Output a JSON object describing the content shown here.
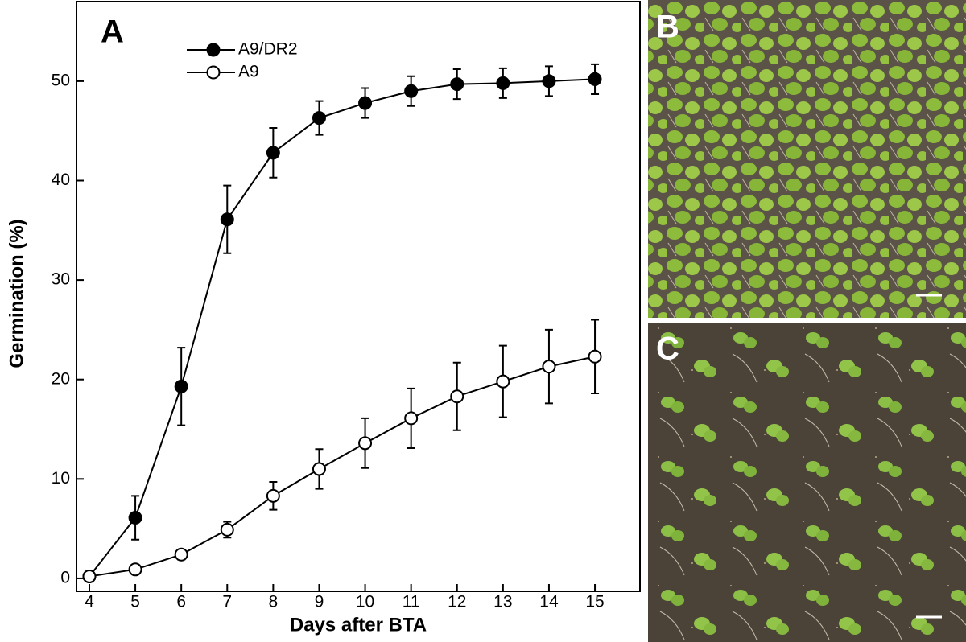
{
  "chart_data": {
    "type": "line",
    "panel_label": "A",
    "xlabel": "Days after BTA",
    "ylabel": "Germination (%)",
    "x": [
      4,
      5,
      6,
      7,
      8,
      9,
      10,
      11,
      12,
      13,
      14,
      15
    ],
    "series": [
      {
        "name": "A9/DR2",
        "color": "#000000",
        "marker": "filled",
        "values": [
          0.2,
          6.1,
          19.3,
          36.1,
          42.8,
          46.3,
          47.8,
          49.0,
          49.7,
          49.8,
          50.0,
          50.2
        ],
        "errors": [
          0,
          2.2,
          3.9,
          3.4,
          2.5,
          1.7,
          1.5,
          1.5,
          1.5,
          1.5,
          1.5,
          1.5
        ]
      },
      {
        "name": "A9",
        "color": "#000000",
        "marker": "open",
        "values": [
          0.2,
          0.9,
          2.4,
          4.9,
          8.3,
          11.0,
          13.6,
          16.1,
          18.3,
          19.8,
          21.3,
          22.3
        ],
        "errors": [
          0,
          0.4,
          0.5,
          0.8,
          1.4,
          2.0,
          2.5,
          3.0,
          3.4,
          3.6,
          3.7,
          3.7
        ]
      }
    ],
    "xlim": [
      3.72,
      15.98
    ],
    "ylim": [
      -1.3,
      58
    ],
    "xticks": [
      4,
      5,
      6,
      7,
      8,
      9,
      10,
      11,
      12,
      13,
      14,
      15
    ],
    "yticks": [
      0,
      10,
      20,
      30,
      40,
      50
    ],
    "legend": "upper left"
  },
  "photos": [
    {
      "label": "B"
    },
    {
      "label": "C"
    }
  ]
}
